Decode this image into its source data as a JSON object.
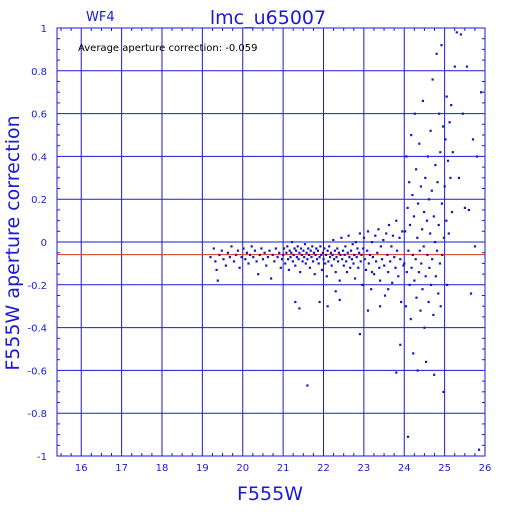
{
  "chart_data": {
    "type": "scatter",
    "title": "lmc_u65007",
    "panel_label": "WF4",
    "annotation": "Average aperture correction: -0.059",
    "xlabel": "F555W",
    "ylabel": "F555W aperture correction",
    "xlim": [
      15.4,
      26
    ],
    "ylim": [
      -1,
      1
    ],
    "xticks": [
      16,
      17,
      18,
      19,
      20,
      21,
      22,
      23,
      24,
      25,
      26
    ],
    "yticks": [
      -1,
      -0.8,
      -0.6,
      -0.4,
      -0.2,
      0,
      0.2,
      0.4,
      0.6,
      0.8,
      1
    ],
    "grid": true,
    "reference_lines": [
      {
        "y": 0,
        "color": "#1a1adb"
      },
      {
        "y": -0.059,
        "color": "#e0301e"
      }
    ],
    "series": [
      {
        "color": "#1414c8",
        "points": [
          [
            19.2,
            -0.07
          ],
          [
            19.28,
            -0.03
          ],
          [
            19.32,
            -0.09
          ],
          [
            19.35,
            -0.13
          ],
          [
            19.38,
            -0.18
          ],
          [
            19.42,
            -0.06
          ],
          [
            19.48,
            -0.04
          ],
          [
            19.52,
            -0.08
          ],
          [
            19.58,
            -0.11
          ],
          [
            19.63,
            -0.05
          ],
          [
            19.68,
            -0.07
          ],
          [
            19.72,
            -0.02
          ],
          [
            19.78,
            -0.09
          ],
          [
            19.83,
            -0.06
          ],
          [
            19.88,
            -0.04
          ],
          [
            19.92,
            -0.12
          ],
          [
            19.97,
            -0.07
          ],
          [
            20.02,
            -0.03
          ],
          [
            20.06,
            -0.08
          ],
          [
            20.1,
            -0.05
          ],
          [
            20.14,
            -0.1
          ],
          [
            20.18,
            -0.06
          ],
          [
            20.22,
            -0.02
          ],
          [
            20.26,
            -0.07
          ],
          [
            20.3,
            -0.04
          ],
          [
            20.34,
            -0.09
          ],
          [
            20.38,
            -0.15
          ],
          [
            20.42,
            -0.06
          ],
          [
            20.46,
            -0.03
          ],
          [
            20.5,
            -0.08
          ],
          [
            20.54,
            -0.05
          ],
          [
            20.58,
            -0.11
          ],
          [
            20.62,
            -0.07
          ],
          [
            20.66,
            -0.04
          ],
          [
            20.7,
            -0.17
          ],
          [
            20.74,
            -0.06
          ],
          [
            20.78,
            -0.09
          ],
          [
            20.82,
            -0.03
          ],
          [
            20.86,
            -0.07
          ],
          [
            20.9,
            -0.05
          ],
          [
            20.94,
            -0.12
          ],
          [
            20.97,
            -0.08
          ],
          [
            21.0,
            -0.06
          ],
          [
            21.02,
            -0.03
          ],
          [
            21.05,
            -0.1
          ],
          [
            21.08,
            -0.05
          ],
          [
            21.1,
            -0.02
          ],
          [
            21.12,
            -0.08
          ],
          [
            21.14,
            -0.13
          ],
          [
            21.16,
            -0.04
          ],
          [
            21.18,
            -0.07
          ],
          [
            21.2,
            -0.05
          ],
          [
            21.22,
            0.0
          ],
          [
            21.24,
            -0.09
          ],
          [
            21.26,
            -0.06
          ],
          [
            21.28,
            -0.03
          ],
          [
            21.3,
            -0.11
          ],
          [
            21.32,
            -0.04
          ],
          [
            21.34,
            -0.07
          ],
          [
            21.36,
            -0.02
          ],
          [
            21.38,
            -0.08
          ],
          [
            21.4,
            -0.05
          ],
          [
            21.42,
            -0.14
          ],
          [
            21.44,
            -0.03
          ],
          [
            21.46,
            -0.06
          ],
          [
            21.48,
            -0.09
          ],
          [
            21.5,
            -0.04
          ],
          [
            21.52,
            -0.07
          ],
          [
            21.54,
            -0.01
          ],
          [
            21.56,
            -0.1
          ],
          [
            21.58,
            -0.05
          ],
          [
            21.6,
            -0.08
          ],
          [
            21.62,
            -0.03
          ],
          [
            21.64,
            -0.06
          ],
          [
            21.66,
            -0.12
          ],
          [
            21.68,
            -0.04
          ],
          [
            21.7,
            -0.07
          ],
          [
            21.72,
            -0.02
          ],
          [
            21.74,
            -0.09
          ],
          [
            21.76,
            -0.05
          ],
          [
            21.78,
            -0.15
          ],
          [
            21.8,
            -0.06
          ],
          [
            21.82,
            -0.03
          ],
          [
            21.84,
            -0.08
          ],
          [
            21.86,
            -0.04
          ],
          [
            21.88,
            -0.1
          ],
          [
            21.9,
            -0.07
          ],
          [
            21.92,
            -0.02
          ],
          [
            21.94,
            -0.06
          ],
          [
            21.96,
            -0.13
          ],
          [
            21.98,
            -0.05
          ],
          [
            22.0,
            -0.08
          ],
          [
            22.02,
            -0.03
          ],
          [
            22.04,
            -0.1
          ],
          [
            22.06,
            -0.06
          ],
          [
            22.08,
            -0.16
          ],
          [
            22.1,
            -0.04
          ],
          [
            22.12,
            -0.09
          ],
          [
            22.14,
            -0.02
          ],
          [
            22.16,
            -0.07
          ],
          [
            22.18,
            -0.05
          ],
          [
            22.2,
            -0.11
          ],
          [
            22.22,
            -0.06
          ],
          [
            22.24,
            0.01
          ],
          [
            22.26,
            -0.08
          ],
          [
            22.28,
            -0.04
          ],
          [
            22.3,
            -0.14
          ],
          [
            22.32,
            -0.07
          ],
          [
            22.34,
            -0.03
          ],
          [
            22.36,
            -0.09
          ],
          [
            22.38,
            -0.05
          ],
          [
            22.4,
            -0.18
          ],
          [
            22.42,
            -0.06
          ],
          [
            22.44,
            0.02
          ],
          [
            22.46,
            -0.08
          ],
          [
            22.48,
            -0.04
          ],
          [
            22.5,
            -0.11
          ],
          [
            22.52,
            -0.06
          ],
          [
            22.54,
            -0.02
          ],
          [
            22.56,
            -0.09
          ],
          [
            22.58,
            -0.14
          ],
          [
            22.6,
            -0.05
          ],
          [
            22.62,
            0.03
          ],
          [
            22.64,
            -0.07
          ],
          [
            22.66,
            -0.12
          ],
          [
            22.68,
            -0.04
          ],
          [
            22.7,
            -0.08
          ],
          [
            22.72,
            -0.01
          ],
          [
            22.74,
            -0.1
          ],
          [
            22.76,
            -0.06
          ],
          [
            22.78,
            -0.17
          ],
          [
            22.8,
            0.0
          ],
          [
            22.82,
            -0.07
          ],
          [
            22.84,
            -0.03
          ],
          [
            22.86,
            -0.12
          ],
          [
            22.88,
            -0.05
          ],
          [
            22.9,
            0.04
          ],
          [
            22.92,
            -0.09
          ],
          [
            22.94,
            -0.06
          ],
          [
            22.96,
            -0.2
          ],
          [
            22.98,
            -0.03
          ],
          [
            23.0,
            0.02
          ],
          [
            23.02,
            -0.08
          ],
          [
            23.05,
            -0.13
          ],
          [
            23.08,
            -0.04
          ],
          [
            23.1,
            0.05
          ],
          [
            23.12,
            -0.1
          ],
          [
            23.15,
            -0.06
          ],
          [
            23.18,
            -0.22
          ],
          [
            23.2,
            0.0
          ],
          [
            23.22,
            -0.07
          ],
          [
            23.25,
            -0.15
          ],
          [
            23.28,
            0.03
          ],
          [
            23.3,
            -0.09
          ],
          [
            23.33,
            -0.05
          ],
          [
            23.36,
            0.06
          ],
          [
            23.38,
            -0.12
          ],
          [
            23.4,
            -0.18
          ],
          [
            23.42,
            -0.02
          ],
          [
            23.45,
            -0.08
          ],
          [
            23.48,
            0.01
          ],
          [
            23.5,
            -0.11
          ],
          [
            23.52,
            -0.25
          ],
          [
            23.55,
            0.04
          ],
          [
            23.58,
            -0.06
          ],
          [
            23.6,
            -0.14
          ],
          [
            23.62,
            0.08
          ],
          [
            23.65,
            -0.09
          ],
          [
            23.68,
            -0.02
          ],
          [
            23.7,
            -0.19
          ],
          [
            23.72,
            0.03
          ],
          [
            23.75,
            -0.07
          ],
          [
            23.78,
            -0.12
          ],
          [
            23.8,
            0.1
          ],
          [
            23.82,
            -0.04
          ],
          [
            23.85,
            -0.16
          ],
          [
            23.88,
            0.02
          ],
          [
            23.9,
            -0.08
          ],
          [
            23.92,
            -0.28
          ],
          [
            23.95,
            0.05
          ],
          [
            23.98,
            -0.11
          ],
          [
            21.3,
            -0.28
          ],
          [
            21.9,
            -0.28
          ],
          [
            22.1,
            -0.3
          ],
          [
            22.4,
            -0.27
          ],
          [
            22.9,
            -0.43
          ],
          [
            23.1,
            -0.32
          ],
          [
            23.4,
            -0.3
          ],
          [
            23.8,
            -0.61
          ],
          [
            23.9,
            -0.48
          ],
          [
            21.6,
            -0.67
          ],
          [
            23.2,
            -0.14
          ],
          [
            23.6,
            -0.22
          ],
          [
            21.4,
            -0.31
          ],
          [
            22.3,
            -0.23
          ],
          [
            24.0,
            -0.1
          ],
          [
            24.02,
            0.05
          ],
          [
            24.04,
            -0.3
          ],
          [
            24.05,
            0.4
          ],
          [
            24.06,
            -0.14
          ],
          [
            24.08,
            0.16
          ],
          [
            24.09,
            -0.91
          ],
          [
            24.1,
            -0.04
          ],
          [
            24.12,
            0.28
          ],
          [
            24.13,
            -0.2
          ],
          [
            24.14,
            0.08
          ],
          [
            24.16,
            -0.36
          ],
          [
            24.17,
            0.5
          ],
          [
            24.18,
            -0.12
          ],
          [
            24.2,
            0.22
          ],
          [
            24.21,
            -0.06
          ],
          [
            24.22,
            -0.52
          ],
          [
            24.24,
            0.12
          ],
          [
            24.25,
            -0.18
          ],
          [
            24.26,
            0.6
          ],
          [
            24.28,
            -0.08
          ],
          [
            24.29,
            0.34
          ],
          [
            24.3,
            -0.26
          ],
          [
            24.32,
            0.02
          ],
          [
            24.33,
            -0.6
          ],
          [
            24.34,
            0.18
          ],
          [
            24.36,
            -0.14
          ],
          [
            24.37,
            0.46
          ],
          [
            24.38,
            -0.04
          ],
          [
            24.4,
            -0.32
          ],
          [
            24.41,
            0.26
          ],
          [
            24.42,
            -0.1
          ],
          [
            24.44,
            0.06
          ],
          [
            24.45,
            -0.22
          ],
          [
            24.46,
            0.66
          ],
          [
            24.48,
            -0.02
          ],
          [
            24.49,
            0.14
          ],
          [
            24.5,
            -0.4
          ],
          [
            24.52,
            0.3
          ],
          [
            24.53,
            -0.16
          ],
          [
            24.54,
            -0.56
          ],
          [
            24.56,
            0.1
          ],
          [
            24.57,
            -0.06
          ],
          [
            24.58,
            0.4
          ],
          [
            24.6,
            -0.28
          ],
          [
            24.61,
            0.2
          ],
          [
            24.62,
            -0.12
          ],
          [
            24.64,
            0.04
          ],
          [
            24.65,
            0.52
          ],
          [
            24.66,
            -0.2
          ],
          [
            24.68,
            0.24
          ],
          [
            24.69,
            -0.08
          ],
          [
            24.7,
            0.76
          ],
          [
            24.72,
            -0.34
          ],
          [
            24.73,
            0.12
          ],
          [
            24.74,
            -0.62
          ],
          [
            24.76,
            0.0
          ],
          [
            24.77,
            0.36
          ],
          [
            24.78,
            -0.16
          ],
          [
            24.8,
            0.88
          ],
          [
            24.81,
            -0.04
          ],
          [
            24.82,
            0.28
          ],
          [
            24.84,
            -0.24
          ],
          [
            24.85,
            0.08
          ],
          [
            24.86,
            0.6
          ],
          [
            24.88,
            -0.1
          ],
          [
            24.89,
            0.42
          ],
          [
            24.9,
            -0.3
          ],
          [
            24.92,
            0.92
          ],
          [
            24.93,
            0.18
          ],
          [
            24.94,
            -0.06
          ],
          [
            24.96,
            0.54
          ],
          [
            24.97,
            -0.7
          ],
          [
            24.98,
            0.02
          ],
          [
            25.0,
            0.26
          ],
          [
            25.02,
            0.48
          ],
          [
            25.04,
            0.1
          ],
          [
            25.05,
            0.68
          ],
          [
            25.06,
            -0.2
          ],
          [
            25.08,
            0.38
          ],
          [
            25.1,
            0.04
          ],
          [
            25.12,
            0.56
          ],
          [
            25.14,
            0.3
          ],
          [
            25.16,
            0.64
          ],
          [
            25.18,
            0.14
          ],
          [
            25.2,
            0.42
          ],
          [
            25.25,
            0.82
          ],
          [
            25.3,
            0.98
          ],
          [
            25.35,
            0.3
          ],
          [
            25.4,
            0.97
          ],
          [
            25.45,
            0.6
          ],
          [
            25.5,
            0.16
          ],
          [
            25.55,
            0.82
          ],
          [
            25.6,
            0.15
          ],
          [
            25.65,
            -0.24
          ],
          [
            25.7,
            0.48
          ],
          [
            25.75,
            -0.02
          ],
          [
            25.8,
            0.4
          ],
          [
            25.85,
            -0.97
          ],
          [
            25.9,
            0.7
          ]
        ]
      }
    ]
  }
}
